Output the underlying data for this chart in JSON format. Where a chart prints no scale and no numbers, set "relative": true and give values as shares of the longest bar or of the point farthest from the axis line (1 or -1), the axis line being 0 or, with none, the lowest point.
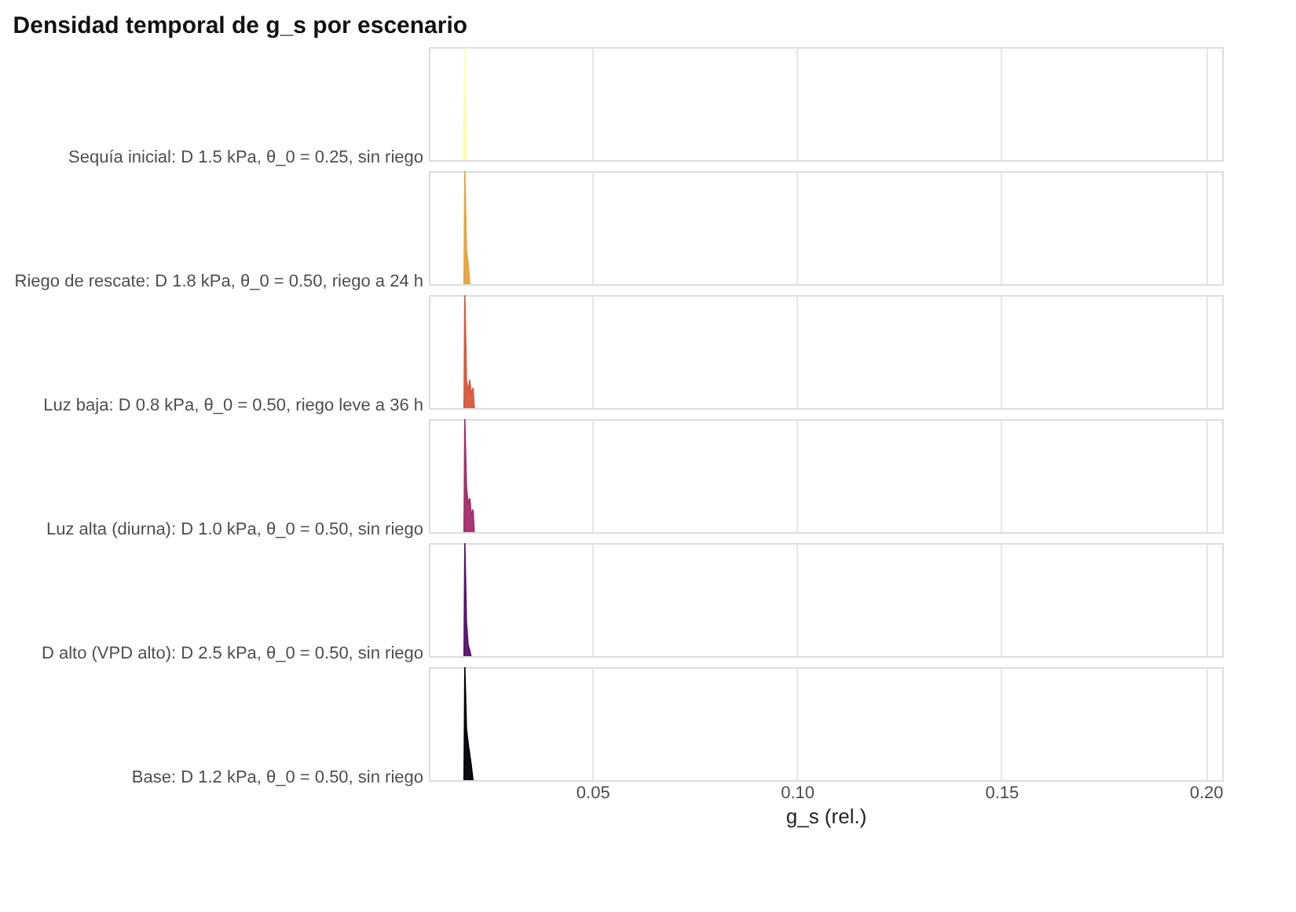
{
  "chart_data": [
    {
      "type": "area",
      "title": "Densidad temporal de g_s por escenario",
      "ylabel": "Sequía inicial: D 1.5 kPa, θ_0 = 0.25, sin riego",
      "relative": true,
      "xlim": [
        0.01,
        0.204
      ],
      "grid": "x",
      "tick_labels": false,
      "series": [
        {
          "color": "#fcffa4",
          "x": [
            0.0185,
            0.0188,
            0.0191
          ],
          "values": [
            0,
            1,
            0
          ]
        }
      ]
    },
    {
      "type": "area",
      "ylabel": "Riego de rescate: D 1.8 kPa, θ_0 = 0.50, riego a 24 h",
      "relative": true,
      "xlim": [
        0.01,
        0.204
      ],
      "grid": "x",
      "tick_labels": false,
      "series": [
        {
          "color": "#e8a33a",
          "x": [
            0.0186,
            0.0188,
            0.0192,
            0.0197,
            0.02
          ],
          "values": [
            0,
            1,
            0.3,
            0.15,
            0
          ]
        }
      ]
    },
    {
      "type": "area",
      "ylabel": "Luz baja: D 0.8 kPa, θ_0 = 0.50, riego leve a 36 h",
      "relative": true,
      "xlim": [
        0.01,
        0.204
      ],
      "grid": "x",
      "tick_labels": false,
      "series": [
        {
          "color": "#d9573b",
          "x": [
            0.0186,
            0.0188,
            0.0192,
            0.0196,
            0.02,
            0.0204,
            0.0208,
            0.0211
          ],
          "values": [
            0,
            1,
            0.25,
            0.15,
            0.25,
            0.12,
            0.18,
            0
          ]
        }
      ]
    },
    {
      "type": "area",
      "ylabel": "Luz alta (diurna): D 1.0 kPa, θ_0 = 0.50, sin riego",
      "relative": true,
      "xlim": [
        0.01,
        0.204
      ],
      "grid": "x",
      "tick_labels": false,
      "series": [
        {
          "color": "#a42c6a",
          "x": [
            0.0186,
            0.0188,
            0.0192,
            0.0196,
            0.02,
            0.0204,
            0.0208,
            0.0211
          ],
          "values": [
            0,
            1,
            0.4,
            0.25,
            0.3,
            0.15,
            0.2,
            0
          ]
        }
      ]
    },
    {
      "type": "area",
      "ylabel": "D alto (VPD alto): D 2.5 kPa, θ_0 = 0.50, sin riego",
      "relative": true,
      "xlim": [
        0.01,
        0.204
      ],
      "grid": "x",
      "tick_labels": false,
      "series": [
        {
          "color": "#57106e",
          "x": [
            0.0186,
            0.0188,
            0.0192,
            0.0196,
            0.02,
            0.0203
          ],
          "values": [
            0,
            1,
            0.3,
            0.1,
            0.05,
            0
          ]
        }
      ]
    },
    {
      "type": "area",
      "ylabel": "Base: D 1.2 kPa, θ_0 = 0.50, sin riego",
      "xlabel": "g_s (rel.)",
      "relative": true,
      "xlim": [
        0.01,
        0.204
      ],
      "xticks": [
        0.05,
        {
          "value": 0.1,
          "label": "0.10"
        },
        0.15,
        {
          "value": 0.2,
          "label": "0.20"
        }
      ],
      "grid": "x",
      "tick_labels": "x",
      "series": [
        {
          "color": "#000004",
          "x": [
            0.0186,
            0.0188,
            0.0192,
            0.0197,
            0.0203,
            0.0208
          ],
          "values": [
            0,
            1,
            0.45,
            0.3,
            0.15,
            0
          ]
        }
      ]
    }
  ]
}
